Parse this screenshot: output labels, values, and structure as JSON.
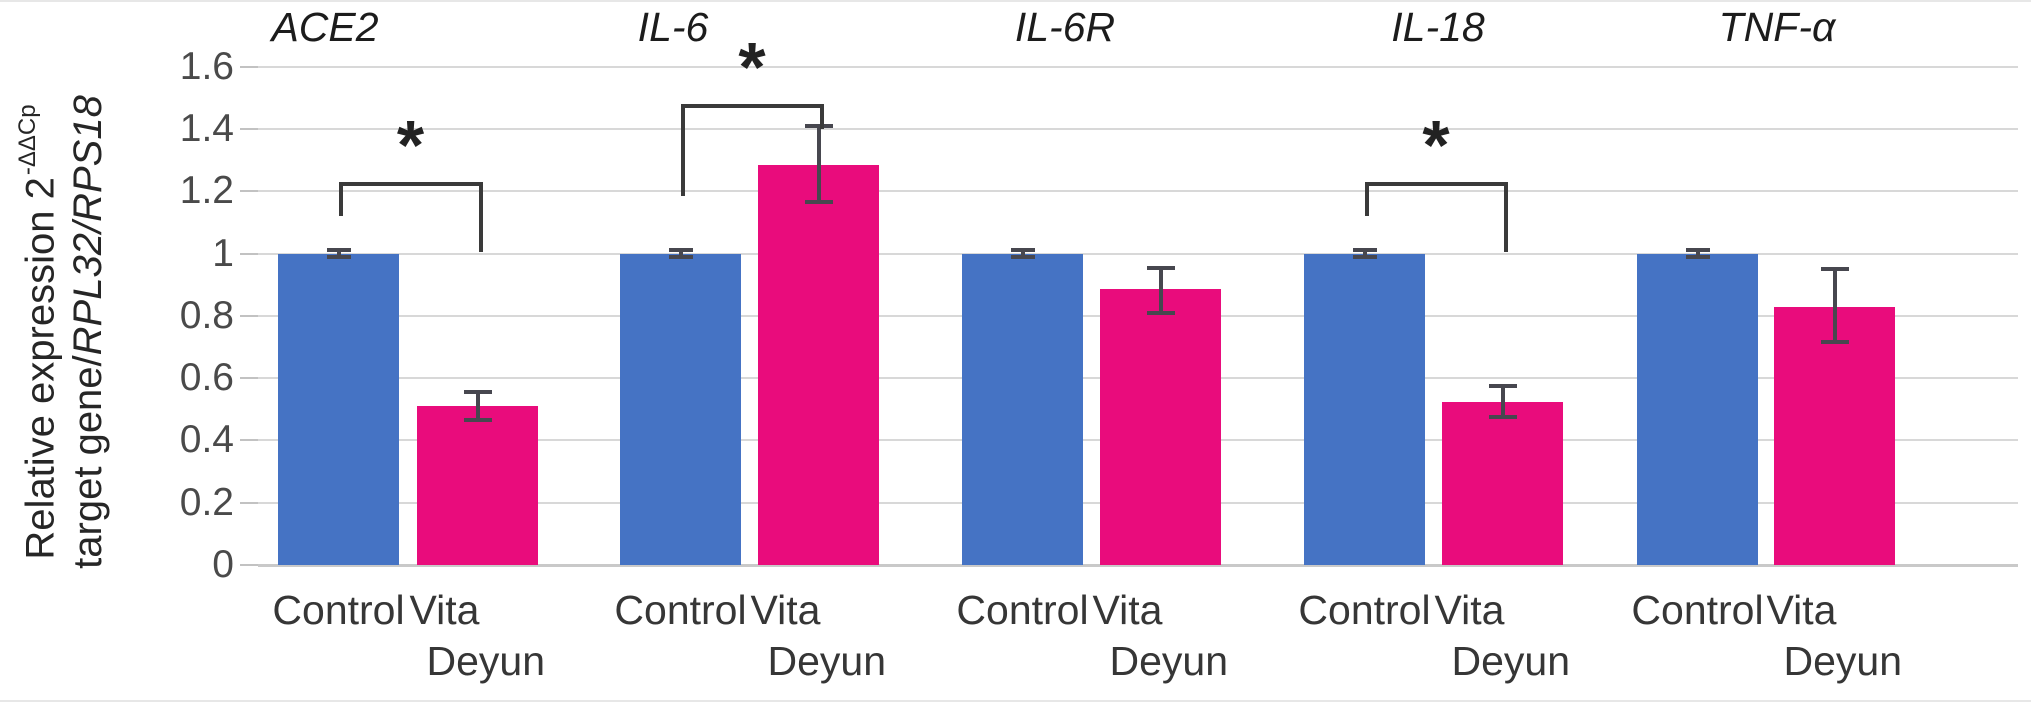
{
  "figure": {
    "background": "#ffffff",
    "y_axis": {
      "label_line1": "Relative expression 2",
      "label_superscript": "-ΔΔCp",
      "label_line2": "target gene/",
      "label_line2_italic": "RPL32/RPS18",
      "tick_labels": [
        "0",
        "0.2",
        "0.4",
        "0.6",
        "0.8",
        "1",
        "1.2",
        "1.4",
        "1.6"
      ]
    },
    "x_axis": {
      "control_label": "Control",
      "treatment_label_line1": "Vita",
      "treatment_label_line2": "Deyun"
    }
  },
  "chart_data": {
    "type": "bar",
    "title": "",
    "ylabel": "Relative expression 2^(-ΔΔCp) target gene/RPL32/RPS18",
    "xlabel": "",
    "ylim": [
      0,
      1.6
    ],
    "ytick_step": 0.2,
    "grid": true,
    "legend_position": "none",
    "groups": [
      "Control",
      "Vita Deyun"
    ],
    "colors": {
      "control_bar": "#4573C4",
      "vita_deyun_bar": "#E90C7C",
      "error_bar": "#47474f",
      "significance": "#3a3a3a",
      "gridline": "#d8d8d8"
    },
    "significance_marker": "*",
    "panels": [
      {
        "gene": "ACE2",
        "control": {
          "value": 1.0,
          "err_up": 0.01,
          "err_down": 0.01
        },
        "vita_deyun": {
          "value": 0.51,
          "err_up": 0.045,
          "err_down": 0.045
        },
        "significance": {
          "marker": "*",
          "bar_y": 1.23,
          "left_end_y": 1.12,
          "right_end_y": 1.005
        }
      },
      {
        "gene": "IL-6",
        "control": {
          "value": 1.0,
          "err_up": 0.01,
          "err_down": 0.01
        },
        "vita_deyun": {
          "value": 1.285,
          "err_up": 0.125,
          "err_down": 0.12
        },
        "significance": {
          "marker": "*",
          "bar_y": 1.48,
          "left_end_y": 1.185,
          "right_end_y": 1.4
        }
      },
      {
        "gene": "IL-6R",
        "control": {
          "value": 1.0,
          "err_up": 0.01,
          "err_down": 0.01
        },
        "vita_deyun": {
          "value": 0.885,
          "err_up": 0.07,
          "err_down": 0.075
        },
        "significance": null
      },
      {
        "gene": "IL-18",
        "control": {
          "value": 1.0,
          "err_up": 0.01,
          "err_down": 0.01
        },
        "vita_deyun": {
          "value": 0.525,
          "err_up": 0.05,
          "err_down": 0.05
        },
        "significance": {
          "marker": "*",
          "bar_y": 1.23,
          "left_end_y": 1.12,
          "right_end_y": 1.005
        }
      },
      {
        "gene": "TNF-α",
        "control": {
          "value": 1.0,
          "err_up": 0.01,
          "err_down": 0.01
        },
        "vita_deyun": {
          "value": 0.83,
          "err_up": 0.12,
          "err_down": 0.115
        },
        "significance": null
      }
    ]
  }
}
